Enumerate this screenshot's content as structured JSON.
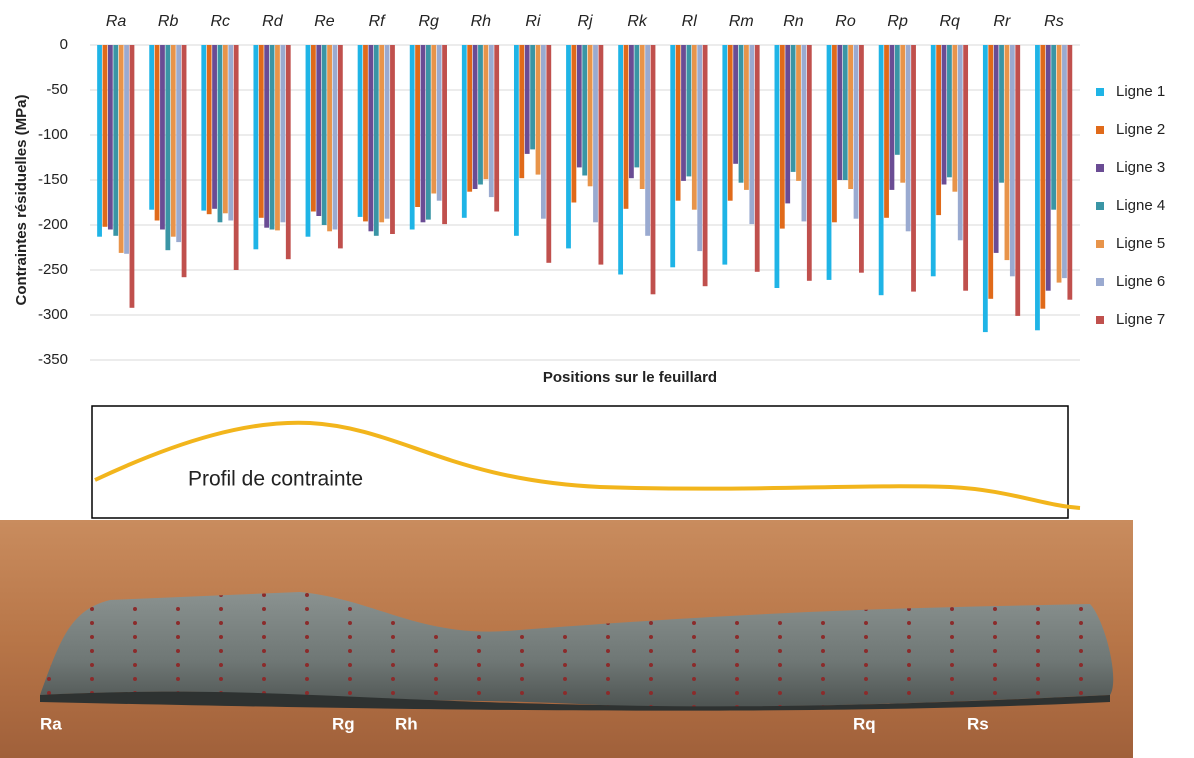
{
  "chart_data": {
    "type": "bar",
    "y_label": "Contraintes résiduelles (MPa)",
    "x_label": "Positions sur le feuillard",
    "categories": [
      "Ra",
      "Rb",
      "Rc",
      "Rd",
      "Re",
      "Rf",
      "Rg",
      "Rh",
      "Ri",
      "Rj",
      "Rk",
      "Rl",
      "Rm",
      "Rn",
      "Ro",
      "Rp",
      "Rq",
      "Rr",
      "Rs"
    ],
    "series": [
      {
        "name": "Ligne 1",
        "color": "#1fb4e6",
        "values": [
          -213,
          -183,
          -184,
          -227,
          -213,
          -191,
          -205,
          -192,
          -212,
          -226,
          -255,
          -247,
          -244,
          -270,
          -261,
          -278,
          -257,
          -319,
          -317
        ]
      },
      {
        "name": "Ligne 2",
        "color": "#e06a1a",
        "values": [
          -202,
          -195,
          -188,
          -192,
          -185,
          -196,
          -180,
          -163,
          -148,
          -175,
          -182,
          -173,
          -173,
          -204,
          -197,
          -192,
          -189,
          -282,
          -293
        ]
      },
      {
        "name": "Ligne 3",
        "color": "#6a4c94",
        "values": [
          -205,
          -205,
          -182,
          -203,
          -190,
          -207,
          -197,
          -160,
          -121,
          -136,
          -148,
          -151,
          -132,
          -176,
          -150,
          -161,
          -155,
          -231,
          -273
        ]
      },
      {
        "name": "Ligne 4",
        "color": "#3a95a5",
        "values": [
          -212,
          -228,
          -197,
          -205,
          -200,
          -212,
          -194,
          -155,
          -116,
          -145,
          -136,
          -146,
          -153,
          -141,
          -150,
          -122,
          -147,
          -153,
          -183
        ]
      },
      {
        "name": "Ligne 5",
        "color": "#e8944a",
        "values": [
          -231,
          -213,
          -187,
          -206,
          -207,
          -197,
          -165,
          -149,
          -144,
          -157,
          -160,
          -183,
          -161,
          -151,
          -160,
          -153,
          -163,
          -239,
          -264
        ]
      },
      {
        "name": "Ligne 6",
        "color": "#9aaad0",
        "values": [
          -232,
          -219,
          -195,
          -197,
          -205,
          -193,
          -173,
          -169,
          -193,
          -197,
          -212,
          -229,
          -199,
          -196,
          -193,
          -207,
          -217,
          -257,
          -259
        ]
      },
      {
        "name": "Ligne 7",
        "color": "#c0504d",
        "values": [
          -292,
          -258,
          -250,
          -238,
          -226,
          -210,
          -199,
          -185,
          -242,
          -244,
          -277,
          -268,
          -252,
          -262,
          -253,
          -274,
          -273,
          -301,
          -283
        ]
      }
    ],
    "ylim": [
      -350,
      0
    ],
    "yticks": [
      0,
      -50,
      -100,
      -150,
      -200,
      -250,
      -300,
      -350
    ],
    "grid": true,
    "legend": "right"
  },
  "profile": {
    "label": "Profil de contrainte"
  },
  "photo": {
    "labels": [
      "Ra",
      "Rg",
      "Rh",
      "Rq",
      "Rs"
    ]
  }
}
